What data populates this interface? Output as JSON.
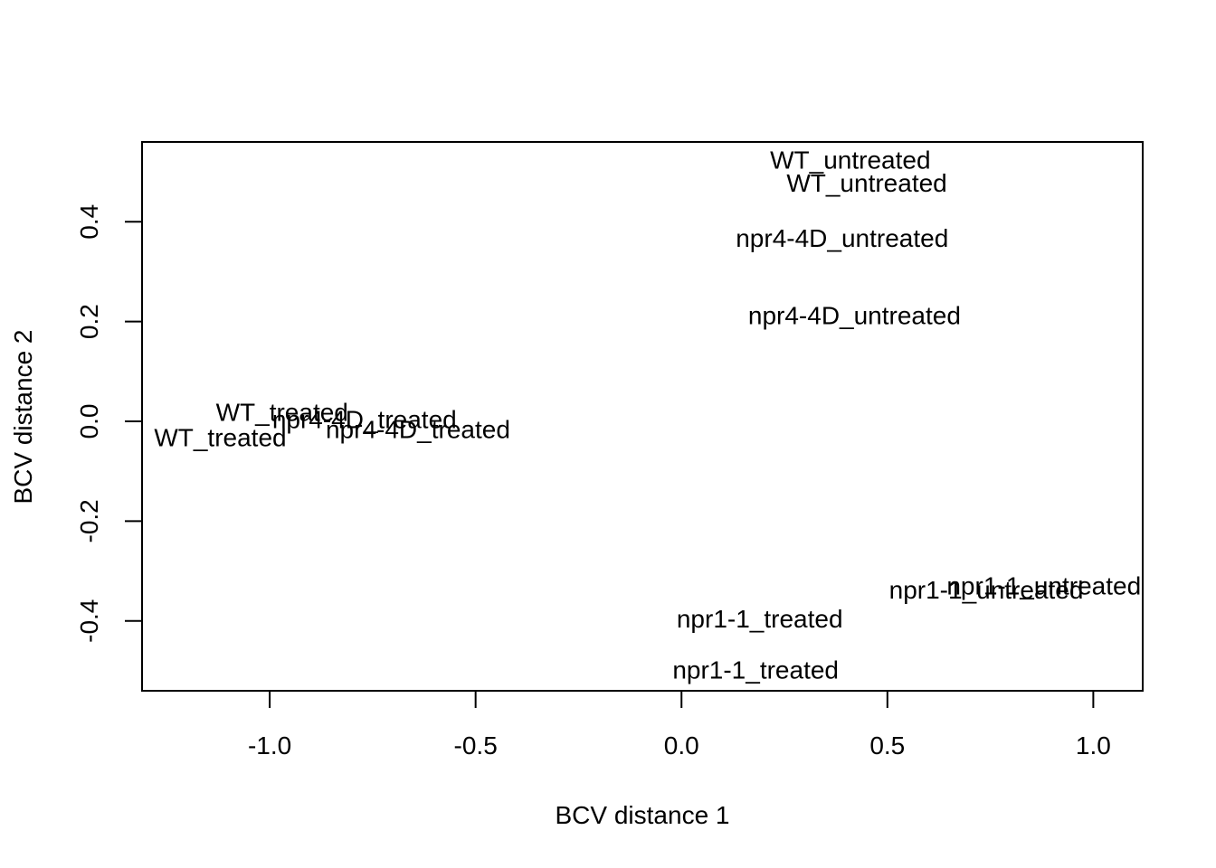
{
  "chart_data": {
    "type": "scatter",
    "title": "",
    "xlabel": "BCV distance 1",
    "ylabel": "BCV distance 2",
    "xlim": [
      -1.31,
      1.12
    ],
    "ylim": [
      -0.54,
      0.56
    ],
    "x_ticks": [
      -1.0,
      -0.5,
      0.0,
      0.5,
      1.0
    ],
    "x_tick_labels": [
      "-1.0",
      "-0.5",
      "0.0",
      "0.5",
      "1.0"
    ],
    "y_ticks": [
      -0.4,
      -0.2,
      0.0,
      0.2,
      0.4
    ],
    "y_tick_labels": [
      "-0.4",
      "-0.2",
      "0.0",
      "0.2",
      "0.4"
    ],
    "grid": false,
    "legend": "none",
    "marker": "text-label",
    "points": [
      {
        "label": "WT_untreated",
        "x": 0.41,
        "y": 0.525
      },
      {
        "label": "WT_untreated",
        "x": 0.45,
        "y": 0.478
      },
      {
        "label": "npr4-4D_untreated",
        "x": 0.39,
        "y": 0.368
      },
      {
        "label": "npr4-4D_untreated",
        "x": 0.42,
        "y": 0.213
      },
      {
        "label": "WT_treated",
        "x": -0.97,
        "y": 0.019
      },
      {
        "label": "npr4-4D_treated",
        "x": -0.77,
        "y": 0.005
      },
      {
        "label": "npr4-4D_treated",
        "x": -0.64,
        "y": -0.015
      },
      {
        "label": "WT_treated",
        "x": -1.12,
        "y": -0.032
      },
      {
        "label": "npr1-1_untreated",
        "x": 0.88,
        "y": -0.329
      },
      {
        "label": "npr1-1_untreated",
        "x": 0.74,
        "y": -0.337
      },
      {
        "label": "npr1-1_treated",
        "x": 0.19,
        "y": -0.395
      },
      {
        "label": "npr1-1_treated",
        "x": 0.18,
        "y": -0.497
      }
    ]
  }
}
